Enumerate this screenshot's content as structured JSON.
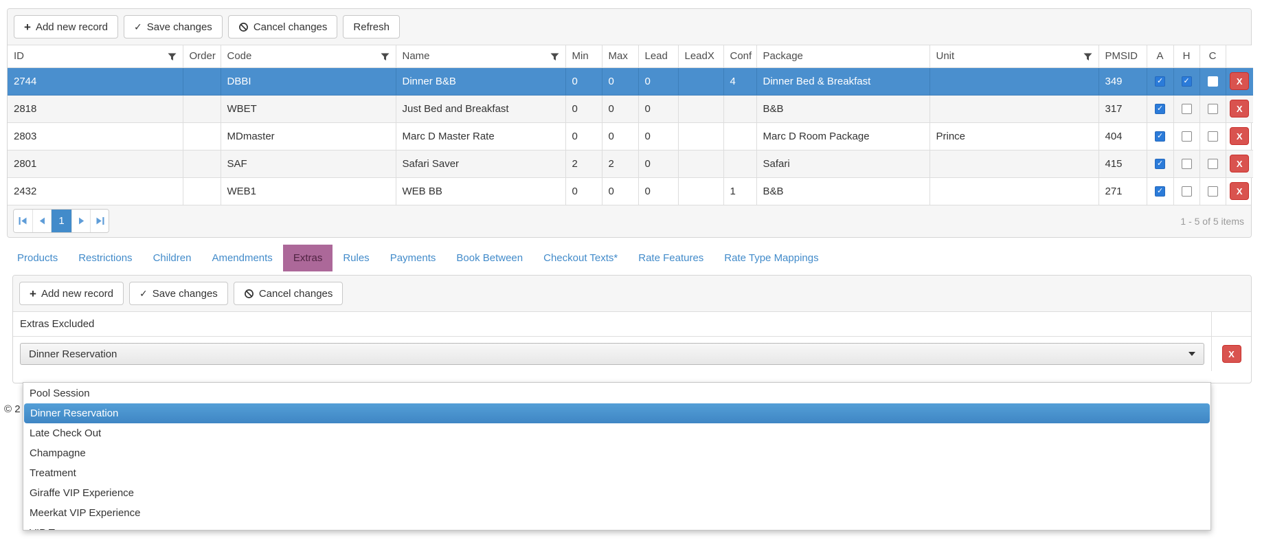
{
  "icons": {
    "plus": "+",
    "check": "✓",
    "delete_x": "X"
  },
  "colors": {
    "selected_row": "#4a8fce",
    "accent_blue": "#428bca",
    "active_tab_bg": "#ac6899",
    "active_tab_text": "#4f2342",
    "delete_red": "#d9534f",
    "alt_row": "#f5f5f5"
  },
  "grid": {
    "toolbar": {
      "add_label": "Add new record",
      "save_label": "Save changes",
      "cancel_label": "Cancel changes",
      "refresh_label": "Refresh"
    },
    "columns": [
      {
        "key": "id",
        "label": "ID",
        "filter": true
      },
      {
        "key": "order",
        "label": "Order"
      },
      {
        "key": "code",
        "label": "Code",
        "filter": true
      },
      {
        "key": "name",
        "label": "Name",
        "filter": true
      },
      {
        "key": "min",
        "label": "Min"
      },
      {
        "key": "max",
        "label": "Max"
      },
      {
        "key": "lead",
        "label": "Lead"
      },
      {
        "key": "leadx",
        "label": "LeadX"
      },
      {
        "key": "conf",
        "label": "Conf"
      },
      {
        "key": "package",
        "label": "Package"
      },
      {
        "key": "unit",
        "label": "Unit",
        "filter": true
      },
      {
        "key": "pmsid",
        "label": "PMSID"
      },
      {
        "key": "a",
        "label": "A",
        "type": "check"
      },
      {
        "key": "h",
        "label": "H",
        "type": "check"
      },
      {
        "key": "c",
        "label": "C",
        "type": "check"
      },
      {
        "key": "del",
        "label": "",
        "type": "delete"
      }
    ],
    "rows": [
      {
        "id": "2744",
        "order": "",
        "code": "DBBI",
        "name": "Dinner B&B",
        "min": "0",
        "max": "0",
        "lead": "0",
        "leadx": "",
        "conf": "4",
        "package": "Dinner Bed & Breakfast",
        "unit": "",
        "pmsid": "349",
        "a": true,
        "h": true,
        "c": false,
        "selected": true
      },
      {
        "id": "2818",
        "order": "",
        "code": "WBET",
        "name": "Just Bed and Breakfast",
        "min": "0",
        "max": "0",
        "lead": "0",
        "leadx": "",
        "conf": "",
        "package": "B&B",
        "unit": "",
        "pmsid": "317",
        "a": true,
        "h": false,
        "c": false,
        "selected": false
      },
      {
        "id": "2803",
        "order": "",
        "code": "MDmaster",
        "name": "Marc D Master Rate",
        "min": "0",
        "max": "0",
        "lead": "0",
        "leadx": "",
        "conf": "",
        "package": "Marc D Room Package",
        "unit": "Prince",
        "pmsid": "404",
        "a": true,
        "h": false,
        "c": false,
        "selected": false
      },
      {
        "id": "2801",
        "order": "",
        "code": "SAF",
        "name": "Safari Saver",
        "min": "2",
        "max": "2",
        "lead": "0",
        "leadx": "",
        "conf": "",
        "package": "Safari",
        "unit": "",
        "pmsid": "415",
        "a": true,
        "h": false,
        "c": false,
        "selected": false
      },
      {
        "id": "2432",
        "order": "",
        "code": "WEB1",
        "name": "WEB BB",
        "min": "0",
        "max": "0",
        "lead": "0",
        "leadx": "",
        "conf": "1",
        "package": "B&B",
        "unit": "",
        "pmsid": "271",
        "a": true,
        "h": false,
        "c": false,
        "selected": false
      }
    ],
    "pager": {
      "current_page": "1",
      "info": "1 - 5 of 5 items"
    }
  },
  "tabs": {
    "active_index": 4,
    "items": [
      "Products",
      "Restrictions",
      "Children",
      "Amendments",
      "Extras",
      "Rules",
      "Payments",
      "Book Between",
      "Checkout Texts*",
      "Rate Features",
      "Rate Type Mappings"
    ]
  },
  "extras_panel": {
    "toolbar": {
      "add_label": "Add new record",
      "save_label": "Save changes",
      "cancel_label": "Cancel changes"
    },
    "column_header": "Extras Excluded",
    "select_value": "Dinner Reservation",
    "highlighted_item": "Dinner Reservation",
    "dropdown_items": [
      "Pool Session",
      "Dinner Reservation",
      "Late Check Out",
      "Champagne",
      "Treatment",
      "Giraffe VIP Experience",
      "Meerkat VIP Experience",
      "VIP Tours"
    ]
  },
  "footer": {
    "visible_text": "© 2"
  }
}
